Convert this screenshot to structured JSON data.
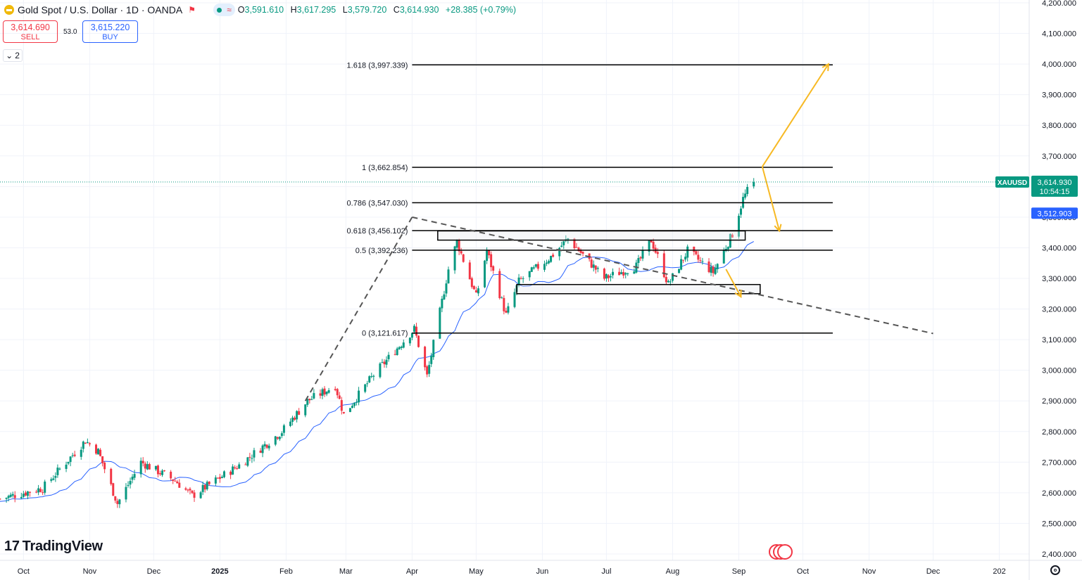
{
  "header": {
    "title": "Gold Spot / U.S. Dollar · 1D · OANDA",
    "o_label": "O",
    "o": "3,591.610",
    "h_label": "H",
    "h": "3,617.295",
    "l_label": "L",
    "l": "3,579.720",
    "c_label": "C",
    "c": "3,614.930",
    "change": "+28.385 (+0.79%)"
  },
  "trade": {
    "sell_price": "3,614.690",
    "sell_label": "SELL",
    "spread": "53.0",
    "buy_price": "3,615.220",
    "buy_label": "BUY",
    "indicators_count": "2"
  },
  "branding": {
    "logo_text": "TradingView"
  },
  "chart_data": {
    "type": "candlestick",
    "symbol": "XAUUSD",
    "ylim": [
      2400,
      4200
    ],
    "y_ticks": [
      2400,
      2500,
      2600,
      2700,
      2800,
      2900,
      3000,
      3100,
      3200,
      3300,
      3400,
      3500,
      3600,
      3700,
      3800,
      3900,
      4000,
      4100,
      4200
    ],
    "y_tick_labels": [
      "2,400.000",
      "2,500.000",
      "2,600.000",
      "2,700.000",
      "2,800.000",
      "2,900.000",
      "3,000.000",
      "3,100.000",
      "3,200.000",
      "3,300.000",
      "3,400.000",
      "3,500.000",
      "3,600.000",
      "3,700.000",
      "3,800.000",
      "3,900.000",
      "4,000.000",
      "4,100.000",
      "4,200.000"
    ],
    "xlim": [
      "2024-09-20",
      "2026-01-15"
    ],
    "x_ticks": [
      {
        "date": "2024-10-01",
        "label": "Oct"
      },
      {
        "date": "2024-11-01",
        "label": "Nov"
      },
      {
        "date": "2024-12-01",
        "label": "Dec"
      },
      {
        "date": "2025-01-01",
        "label": "2025"
      },
      {
        "date": "2025-02-01",
        "label": "Feb"
      },
      {
        "date": "2025-03-01",
        "label": "Mar"
      },
      {
        "date": "2025-04-01",
        "label": "Apr"
      },
      {
        "date": "2025-05-01",
        "label": "May"
      },
      {
        "date": "2025-06-01",
        "label": "Jun"
      },
      {
        "date": "2025-07-01",
        "label": "Jul"
      },
      {
        "date": "2025-08-01",
        "label": "Aug"
      },
      {
        "date": "2025-09-01",
        "label": "Sep"
      },
      {
        "date": "2025-10-01",
        "label": "Oct"
      },
      {
        "date": "2025-11-01",
        "label": "Nov"
      },
      {
        "date": "2025-12-01",
        "label": "Dec"
      },
      {
        "date": "2026-01-01",
        "label": "202"
      }
    ],
    "price_anchors": [
      [
        "2024-09-20",
        2580
      ],
      [
        "2024-10-10",
        2615
      ],
      [
        "2024-10-30",
        2770
      ],
      [
        "2024-11-05",
        2735
      ],
      [
        "2024-11-14",
        2565
      ],
      [
        "2024-11-25",
        2700
      ],
      [
        "2024-12-11",
        2640
      ],
      [
        "2024-12-19",
        2590
      ],
      [
        "2025-01-10",
        2690
      ],
      [
        "2025-01-30",
        2800
      ],
      [
        "2025-02-11",
        2900
      ],
      [
        "2025-02-24",
        2950
      ],
      [
        "2025-02-28",
        2855
      ],
      [
        "2025-03-14",
        2985
      ],
      [
        "2025-04-02",
        3135
      ],
      [
        "2025-04-08",
        2980
      ],
      [
        "2025-04-18",
        3330
      ],
      [
        "2025-04-22",
        3420
      ],
      [
        "2025-05-01",
        3240
      ],
      [
        "2025-05-06",
        3390
      ],
      [
        "2025-05-15",
        3180
      ],
      [
        "2025-05-21",
        3290
      ],
      [
        "2025-06-05",
        3370
      ],
      [
        "2025-06-13",
        3430
      ],
      [
        "2025-06-30",
        3300
      ],
      [
        "2025-07-15",
        3340
      ],
      [
        "2025-07-22",
        3425
      ],
      [
        "2025-07-30",
        3280
      ],
      [
        "2025-08-08",
        3390
      ],
      [
        "2025-08-20",
        3320
      ],
      [
        "2025-08-29",
        3445
      ],
      [
        "2025-09-03",
        3560
      ],
      [
        "2025-09-05",
        3585
      ],
      [
        "2025-09-08",
        3615
      ]
    ],
    "last_price": {
      "label": "XAUUSD",
      "value": "3,614.930",
      "countdown": "10:54:15",
      "price": 3614.93
    },
    "ma": {
      "value": "3,512.903",
      "price": 3512.903
    },
    "fibonacci": {
      "x_start": "2025-04-01",
      "x_end": "2025-10-15",
      "levels": [
        {
          "label": "1.618 (3,997.339)",
          "price": 3997.339
        },
        {
          "label": "1 (3,662.854)",
          "price": 3662.854
        },
        {
          "label": "0.786 (3,547.030)",
          "price": 3547.03
        },
        {
          "label": "0.618 (3,456.102)",
          "price": 3456.102
        },
        {
          "label": "0.5 (3,392.236)",
          "price": 3392.236
        },
        {
          "label": "0 (3,121.617)",
          "price": 3121.617
        }
      ]
    },
    "trendlines": [
      {
        "from": [
          "2025-02-10",
          2900
        ],
        "to": [
          "2025-04-01",
          3500
        ]
      },
      {
        "from": [
          "2025-04-01",
          3500
        ],
        "to": [
          "2025-12-01",
          3120
        ]
      }
    ],
    "zones": [
      {
        "from": [
          "2025-04-13",
          3455
        ],
        "to": [
          "2025-09-04",
          3425
        ]
      },
      {
        "from": [
          "2025-05-20",
          3280
        ],
        "to": [
          "2025-09-11",
          3250
        ]
      }
    ],
    "projection_arrows": [
      {
        "from": [
          "2025-09-12",
          3665
        ],
        "to": [
          "2025-10-13",
          4000
        ]
      },
      {
        "from": [
          "2025-09-12",
          3665
        ],
        "to": [
          "2025-09-20",
          3455
        ]
      },
      {
        "from": [
          "2025-08-26",
          3330
        ],
        "to": [
          "2025-09-02",
          3240
        ]
      }
    ],
    "colors": {
      "up": "#089981",
      "down": "#f23645",
      "ma": "#2962ff",
      "fib": "#000000",
      "trend": "#555555",
      "arrow": "#f7b924",
      "grid": "#f0f3fa"
    }
  }
}
